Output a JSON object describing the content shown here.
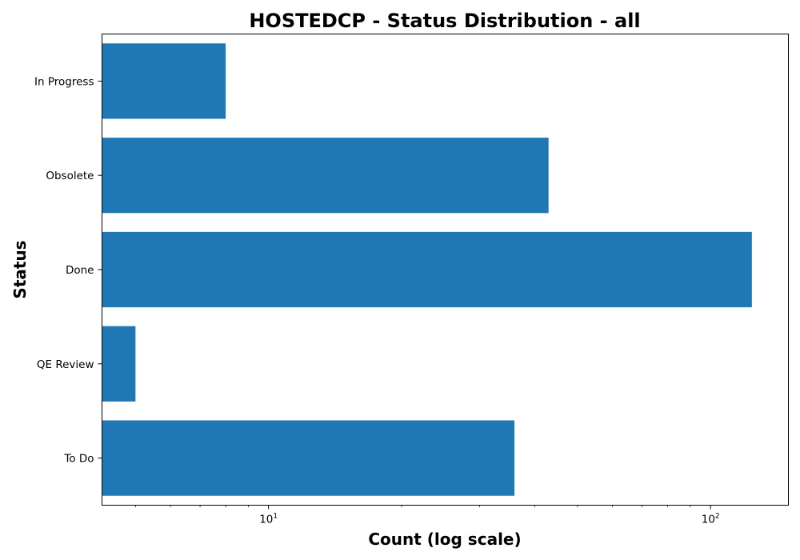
{
  "chart_data": {
    "type": "bar",
    "orientation": "horizontal",
    "title": "HOSTEDCP - Status Distribution - all",
    "xlabel": "Count (log scale)",
    "ylabel": "Status",
    "x_scale": "log",
    "xlim": [
      4.2,
      150
    ],
    "x_ticks": [
      {
        "value": 10,
        "base": "10",
        "exp": "1"
      },
      {
        "value": 100,
        "base": "10",
        "exp": "2"
      }
    ],
    "categories": [
      "In Progress",
      "Obsolete",
      "Done",
      "QE Review",
      "To Do"
    ],
    "values": [
      8,
      43,
      124,
      5,
      36
    ],
    "bar_color": "#1f77b4",
    "grid": false,
    "legend": false
  }
}
